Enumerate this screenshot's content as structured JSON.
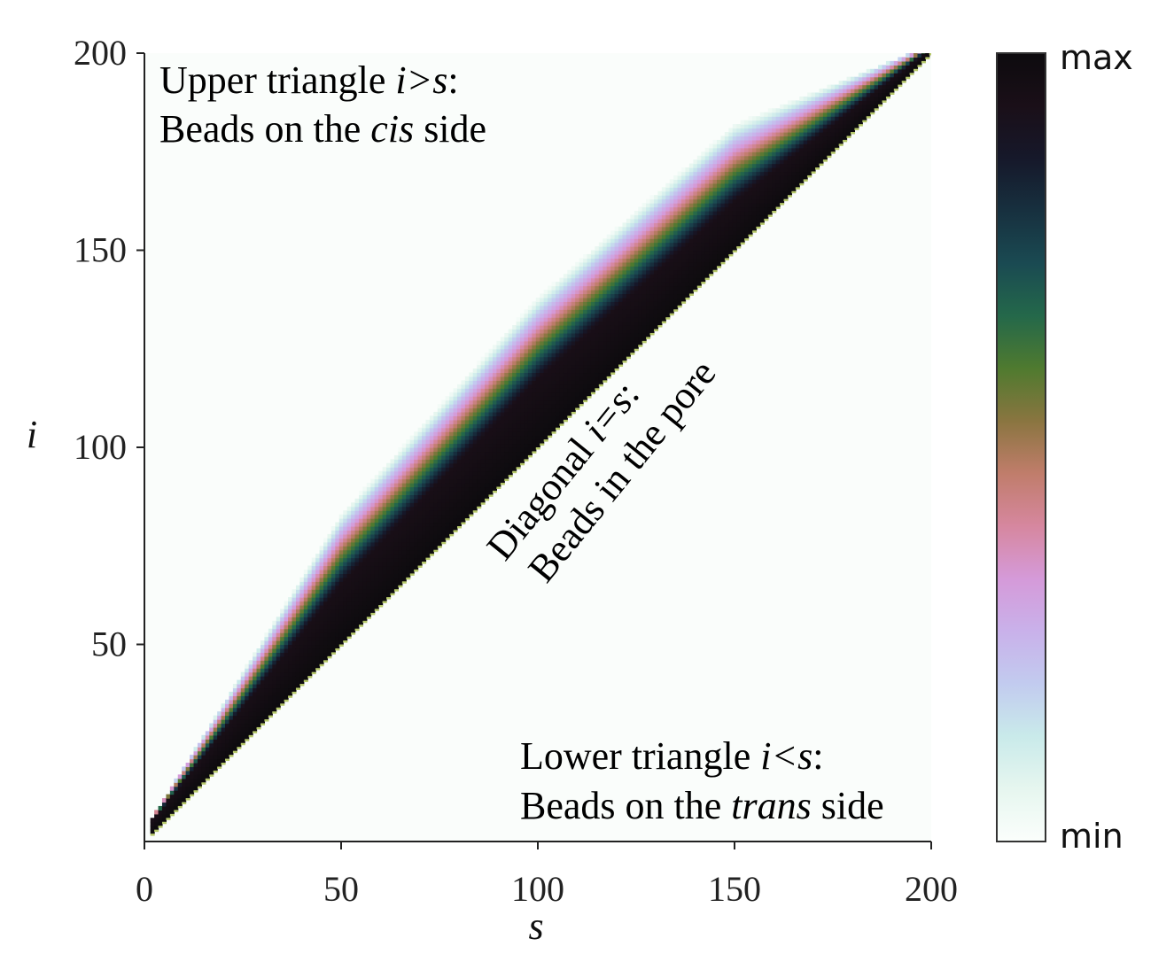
{
  "chart_data": {
    "type": "heatmap",
    "title": "",
    "xlabel": "s",
    "ylabel": "i",
    "xlim": [
      0,
      200
    ],
    "ylim": [
      0,
      200
    ],
    "xticks": [
      0,
      50,
      100,
      150,
      200
    ],
    "yticks": [
      50,
      100,
      150,
      200
    ],
    "xtick_labels": [
      "0",
      "50",
      "100",
      "150",
      "200"
    ],
    "ytick_labels": [
      "50",
      "100",
      "150",
      "200"
    ],
    "band": {
      "description_note": "",
      "dark_core_width_at_s": [
        {
          "s": 2,
          "width": 3
        },
        {
          "s": 50,
          "width": 15
        },
        {
          "s": 100,
          "width": 17
        },
        {
          "s": 150,
          "width": 12
        },
        {
          "s": 200,
          "width": 1
        }
      ],
      "full_width_at_s": [
        {
          "s": 2,
          "width": 4
        },
        {
          "s": 50,
          "width": 33
        },
        {
          "s": 100,
          "width": 38
        },
        {
          "s": 150,
          "width": 32
        },
        {
          "s": 200,
          "width": 2
        }
      ]
    },
    "colorbar": {
      "max_label": "max",
      "min_label": "min",
      "colors": [
        "#fbfefc",
        "#e6f6ef",
        "#c9eaea",
        "#c2cbef",
        "#c9b1ea",
        "#d59ad9",
        "#d6879f",
        "#c07d6b",
        "#8a7540",
        "#4f7a2f",
        "#24684a",
        "#1a4a52",
        "#17303f",
        "#16182a",
        "#1a0f18",
        "#0d0b0e"
      ]
    },
    "annotations": {
      "upper": {
        "line1_prefix": "Upper triangle ",
        "line1_math": "i>s",
        "line1_suffix": ":",
        "line2_prefix": "Beads on the ",
        "line2_italic": "cis",
        "line2_suffix": " side"
      },
      "diagonal": {
        "line1_prefix": "Diagonal ",
        "line1_math": "i=s",
        "line1_suffix": ":",
        "line2": "Beads in the pore"
      },
      "lower": {
        "line1_prefix": "Lower triangle ",
        "line1_math": "i<s",
        "line1_suffix": ":",
        "line2_prefix": "Beads on the ",
        "line2_italic": "trans",
        "line2_suffix": " side"
      }
    }
  }
}
